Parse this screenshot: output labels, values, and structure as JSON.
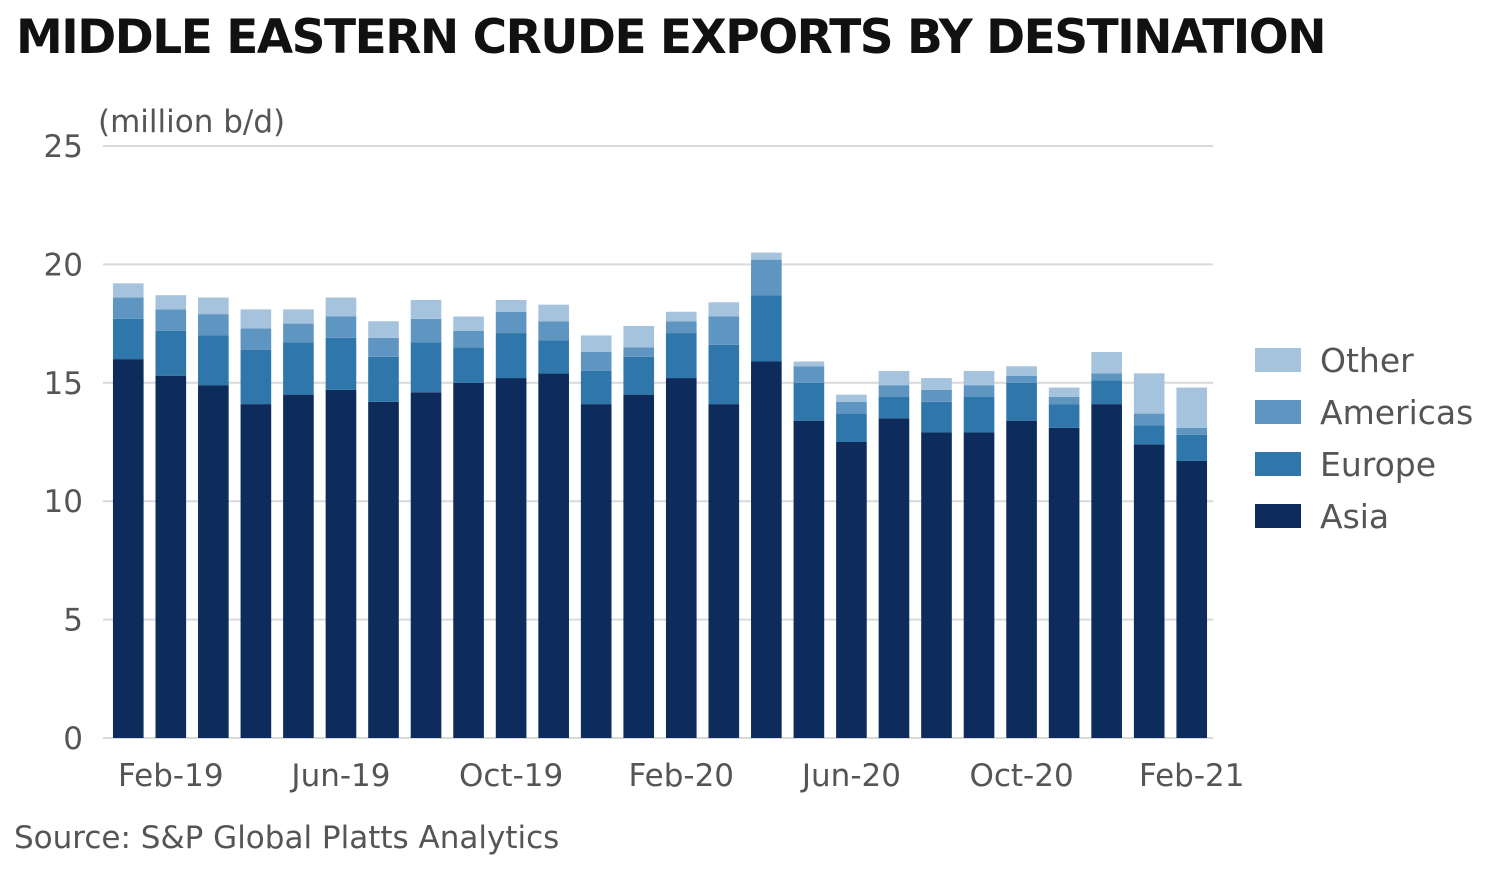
{
  "title": "MIDDLE EASTERN CRUDE EXPORTS BY DESTINATION",
  "source": "Source: S&P Global Platts Analytics",
  "colors": {
    "Asia": "#0d2b5b",
    "Europe": "#2f77aa",
    "Americas": "#5f95c1",
    "Other": "#a6c3dd",
    "grid": "#d9d9d9",
    "text": "#555555"
  },
  "chart_data": {
    "type": "bar",
    "stacked": true,
    "ylabel": "(million b/d)",
    "ylim": [
      0,
      25
    ],
    "yticks": [
      0,
      5,
      10,
      15,
      20,
      25
    ],
    "grid": true,
    "legend_position": "right",
    "categories": [
      "Jan-19",
      "Feb-19",
      "Mar-19",
      "Apr-19",
      "May-19",
      "Jun-19",
      "Jul-19",
      "Aug-19",
      "Sep-19",
      "Oct-19",
      "Nov-19",
      "Dec-19",
      "Jan-20",
      "Feb-20",
      "Mar-20",
      "Apr-20",
      "May-20",
      "Jun-20",
      "Jul-20",
      "Aug-20",
      "Sep-20",
      "Oct-20",
      "Nov-20",
      "Dec-20",
      "Jan-21",
      "Feb-21"
    ],
    "xtick_labels": [
      "Feb-19",
      "Jun-19",
      "Oct-19",
      "Feb-20",
      "Jun-20",
      "Oct-20",
      "Feb-21"
    ],
    "series": [
      {
        "name": "Asia",
        "values": [
          16.0,
          15.3,
          14.9,
          14.1,
          14.5,
          14.7,
          14.2,
          14.6,
          15.0,
          15.2,
          15.4,
          14.1,
          14.5,
          15.2,
          14.1,
          15.9,
          13.4,
          12.5,
          13.5,
          12.9,
          12.9,
          13.4,
          13.1,
          14.1,
          12.4,
          11.7
        ]
      },
      {
        "name": "Europe",
        "values": [
          1.7,
          1.9,
          2.1,
          2.3,
          2.2,
          2.2,
          1.9,
          2.1,
          1.5,
          1.9,
          1.4,
          1.4,
          1.6,
          1.9,
          2.5,
          2.8,
          1.6,
          1.2,
          0.9,
          1.3,
          1.5,
          1.6,
          1.0,
          1.0,
          0.8,
          1.1
        ]
      },
      {
        "name": "Americas",
        "values": [
          0.9,
          0.9,
          0.9,
          0.9,
          0.8,
          0.9,
          0.8,
          1.0,
          0.7,
          0.9,
          0.8,
          0.8,
          0.4,
          0.5,
          1.2,
          1.5,
          0.7,
          0.5,
          0.5,
          0.5,
          0.5,
          0.3,
          0.3,
          0.3,
          0.5,
          0.3
        ]
      },
      {
        "name": "Other",
        "values": [
          0.6,
          0.6,
          0.7,
          0.8,
          0.6,
          0.8,
          0.7,
          0.8,
          0.6,
          0.5,
          0.7,
          0.7,
          0.9,
          0.4,
          0.6,
          0.3,
          0.2,
          0.3,
          0.6,
          0.5,
          0.6,
          0.4,
          0.4,
          0.9,
          1.7,
          1.7
        ]
      }
    ]
  }
}
